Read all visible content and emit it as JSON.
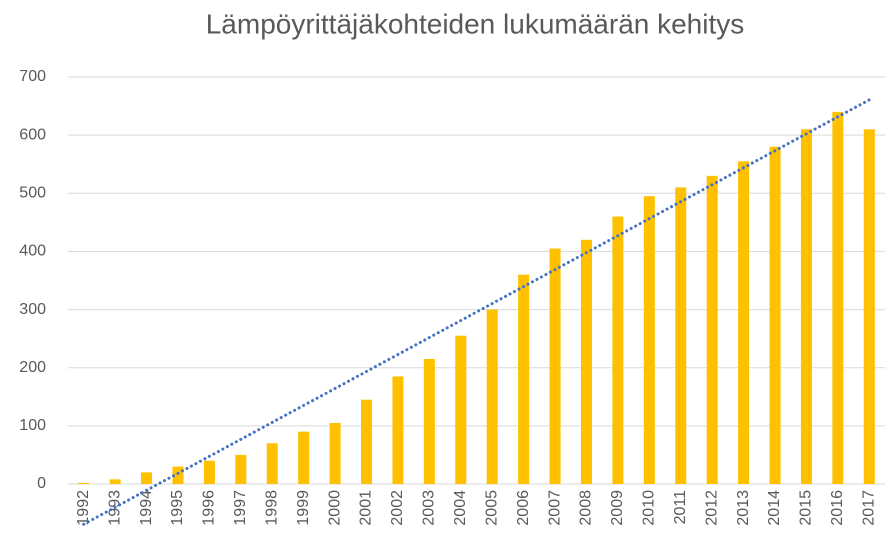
{
  "chart_data": {
    "type": "bar",
    "title": "Lämpöyrittäjäkohteiden lukumäärän kehitys",
    "categories": [
      "1992",
      "1993",
      "1994",
      "1995",
      "1996",
      "1997",
      "1998",
      "1999",
      "2000",
      "2001",
      "2002",
      "2003",
      "2004",
      "2005",
      "2006",
      "2007",
      "2008",
      "2009",
      "2010",
      "2011",
      "2012",
      "2013",
      "2014",
      "2015",
      "2016",
      "2017"
    ],
    "values": [
      2,
      8,
      20,
      30,
      40,
      50,
      70,
      90,
      105,
      145,
      185,
      215,
      255,
      300,
      360,
      405,
      420,
      460,
      495,
      510,
      530,
      555,
      580,
      610,
      640,
      610
    ],
    "color": "#ffc000",
    "trendline": {
      "kind": "linear",
      "color": "#4472c4"
    },
    "ylim": [
      0,
      700
    ],
    "yticks": [
      0,
      100,
      200,
      300,
      400,
      500,
      600,
      700
    ],
    "grid": true
  }
}
